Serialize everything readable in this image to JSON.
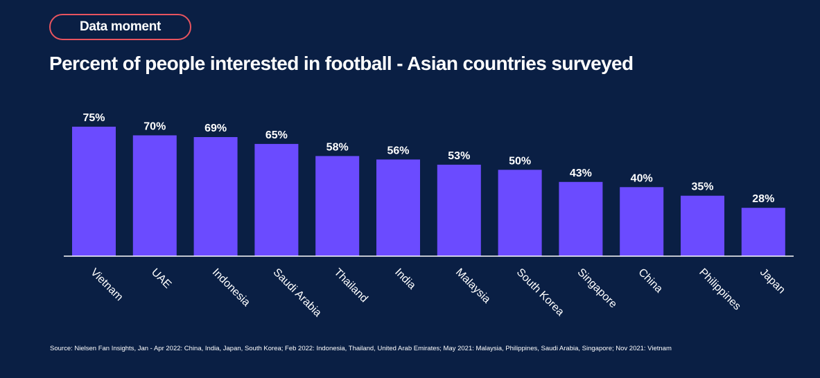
{
  "badge": {
    "label": "Data moment"
  },
  "colors": {
    "background": "#0a1f44",
    "bar": "#6b4bff",
    "badge_border": "#e8545f",
    "text": "#ffffff"
  },
  "chart_data": {
    "type": "bar",
    "title": "Percent of people interested in football - Asian countries surveyed",
    "categories": [
      "Vietnam",
      "UAE",
      "Indonesia",
      "Saudi Arabia",
      "Thailand",
      "India",
      "Malaysia",
      "South Korea",
      "Singapore",
      "China",
      "Philippines",
      "Japan"
    ],
    "values": [
      75,
      70,
      69,
      65,
      58,
      56,
      53,
      50,
      43,
      40,
      35,
      28
    ],
    "value_labels": [
      "75%",
      "70%",
      "69%",
      "65%",
      "58%",
      "56%",
      "53%",
      "50%",
      "43%",
      "40%",
      "35%",
      "28%"
    ],
    "xlabel": "",
    "ylabel": "",
    "ylim": [
      0,
      75
    ],
    "grid": false,
    "legend": "none"
  },
  "source": "Source: Nielsen Fan Insights, Jan - Apr 2022: China, India, Japan, South Korea; Feb 2022: Indonesia, Thailand, United Arab Emirates; May 2021: Malaysia, Philippines, Saudi Arabia, Singapore; Nov 2021: Vietnam"
}
